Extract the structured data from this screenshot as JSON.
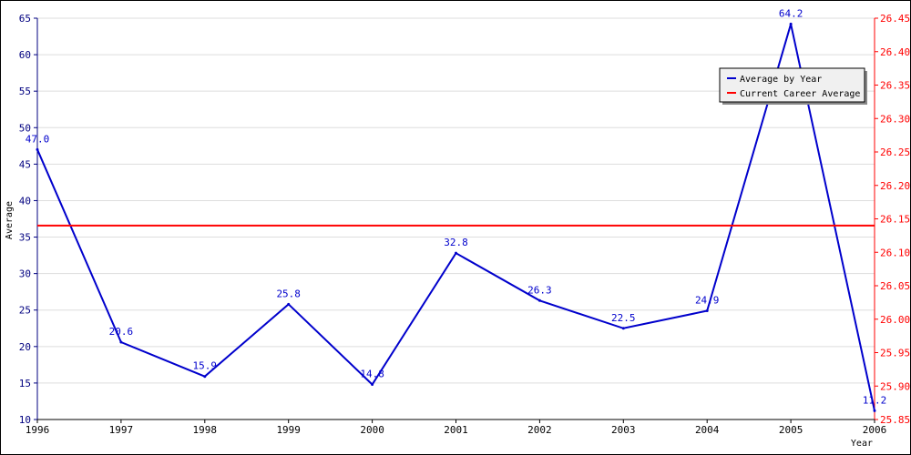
{
  "chart_data": {
    "type": "line",
    "xlabel": "Year",
    "ylabel": "Average",
    "x": [
      "1996",
      "1997",
      "1998",
      "1999",
      "2000",
      "2001",
      "2002",
      "2003",
      "2004",
      "2005",
      "2006"
    ],
    "ylim": [
      10,
      65
    ],
    "y_ticks": [
      10,
      15,
      20,
      25,
      30,
      35,
      40,
      45,
      50,
      55,
      60,
      65
    ],
    "y2lim": [
      25.85,
      26.45
    ],
    "y2_ticks": [
      "25.85",
      "25.90",
      "25.95",
      "26.00",
      "26.05",
      "26.10",
      "26.15",
      "26.20",
      "26.25",
      "26.30",
      "26.35",
      "26.40",
      "26.45"
    ],
    "series": [
      {
        "name": "Average by Year",
        "color": "#0000cc",
        "axis": "left",
        "values": [
          47.0,
          20.6,
          15.9,
          25.8,
          14.8,
          32.8,
          26.3,
          22.5,
          24.9,
          64.2,
          11.2
        ],
        "labels": [
          "47.0",
          "20.6",
          "15.9",
          "25.8",
          "14.8",
          "32.8",
          "26.3",
          "22.5",
          "24.9",
          "64.2",
          "11.2"
        ]
      },
      {
        "name": "Current Career Average",
        "color": "#ff0000",
        "axis": "right",
        "value": 26.14
      }
    ],
    "grid": "horizontal",
    "legend_position": "top-right",
    "colors": {
      "left_axis": "#000080",
      "right_axis": "#ff0000",
      "grid": "#dddddd"
    }
  }
}
